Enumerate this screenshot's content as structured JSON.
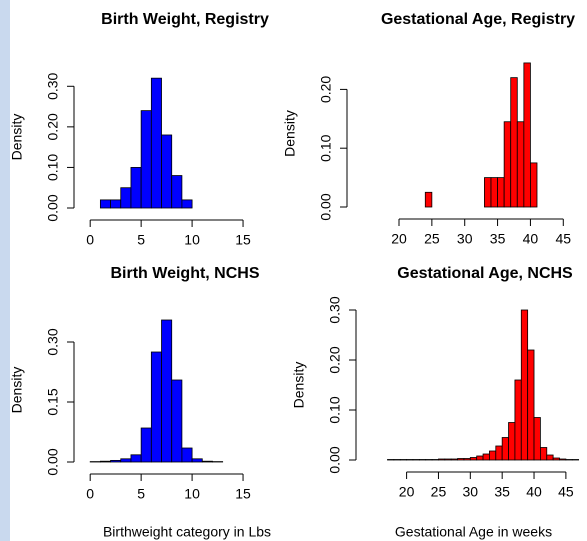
{
  "chart_data": [
    {
      "type": "histogram",
      "title": "Birth Weight, Registry",
      "y_label": "Density",
      "color": "#0000ff",
      "bins": [
        1,
        2,
        3,
        4,
        5,
        6,
        7,
        8,
        9,
        10,
        11,
        12,
        13,
        14,
        15,
        16,
        17,
        18,
        19
      ],
      "values": [
        0.02,
        0.02,
        0.05,
        0.1,
        0.24,
        0.32,
        0.18,
        0.08,
        0.02,
        0,
        0,
        0,
        0,
        0,
        0,
        0,
        0,
        0
      ],
      "xlim": [
        -1,
        20
      ],
      "xticks": [
        0,
        5,
        10,
        15
      ],
      "ylim": [
        0,
        0.35
      ],
      "yticks": [
        {
          "value": 0,
          "label": "0.00"
        },
        {
          "value": 0.1,
          "label": "0.10"
        },
        {
          "value": 0.2,
          "label": "0.20"
        },
        {
          "value": 0.3,
          "label": "0.30"
        }
      ]
    },
    {
      "type": "histogram",
      "title": "Gestational Age, Registry",
      "y_label": "Density",
      "color": "#ff0000",
      "bins": [
        15,
        16,
        17,
        18,
        19,
        20,
        21,
        22,
        23,
        24,
        25,
        26,
        27,
        28,
        29,
        30,
        31,
        32,
        33,
        34,
        35,
        36,
        37,
        38,
        39,
        40,
        41,
        42,
        43,
        44,
        45,
        46,
        47
      ],
      "values": [
        0,
        0,
        0,
        0,
        0,
        0,
        0,
        0,
        0,
        0.025,
        0,
        0,
        0,
        0,
        0,
        0,
        0,
        0,
        0.05,
        0.05,
        0.05,
        0.145,
        0.22,
        0.145,
        0.245,
        0.075,
        0,
        0,
        0,
        0,
        0,
        0
      ],
      "xlim": [
        13,
        48
      ],
      "xticks": [
        20,
        25,
        30,
        35,
        40,
        45
      ],
      "ylim": [
        0,
        0.25
      ],
      "yticks": [
        {
          "value": 0,
          "label": "0.00"
        },
        {
          "value": 0.1,
          "label": "0.10"
        },
        {
          "value": 0.2,
          "label": "0.20"
        }
      ]
    },
    {
      "type": "histogram",
      "title": "Birth Weight, NCHS",
      "y_label": "Density",
      "x_label": "Birthweight category in Lbs",
      "color": "#0000ff",
      "bins": [
        0,
        1,
        2,
        3,
        4,
        5,
        6,
        7,
        8,
        9,
        10,
        11,
        12,
        13,
        14,
        15,
        16,
        17,
        18,
        19
      ],
      "values": [
        0.001,
        0.002,
        0.004,
        0.008,
        0.018,
        0.085,
        0.275,
        0.355,
        0.205,
        0.035,
        0.008,
        0.002,
        0.001,
        0,
        0,
        0,
        0,
        0,
        0
      ],
      "xlim": [
        -1,
        20
      ],
      "xticks": [
        0,
        5,
        10,
        15
      ],
      "ylim": [
        0,
        0.36
      ],
      "yticks": [
        {
          "value": 0,
          "label": "0.00"
        },
        0.15,
        {
          "value": 0.3,
          "label": "0.30"
        }
      ]
    },
    {
      "type": "histogram",
      "title": "Gestational Age, NCHS",
      "y_label": "Density",
      "x_label": "Gestational Age in weeks",
      "color": "#ff0000",
      "bins": [
        17,
        18,
        19,
        20,
        21,
        22,
        23,
        24,
        25,
        26,
        27,
        28,
        29,
        30,
        31,
        32,
        33,
        34,
        35,
        36,
        37,
        38,
        39,
        40,
        41,
        42,
        43,
        44,
        45,
        46,
        47
      ],
      "values": [
        0.001,
        0.001,
        0.001,
        0.001,
        0.001,
        0.001,
        0.001,
        0.001,
        0.002,
        0.002,
        0.002,
        0.003,
        0.003,
        0.005,
        0.008,
        0.012,
        0.018,
        0.028,
        0.045,
        0.075,
        0.16,
        0.3,
        0.22,
        0.085,
        0.025,
        0.01,
        0.004,
        0.002,
        0.001,
        0.001
      ],
      "xlim": [
        13,
        48
      ],
      "xticks": [
        20,
        25,
        30,
        35,
        40,
        45
      ],
      "ylim": [
        0,
        0.3
      ],
      "yticks": [
        {
          "value": 0,
          "label": "0.00"
        },
        {
          "value": 0.1,
          "label": "0.10"
        },
        {
          "value": 0.2,
          "label": "0.20"
        },
        {
          "value": 0.3,
          "label": "0.30"
        }
      ]
    }
  ]
}
